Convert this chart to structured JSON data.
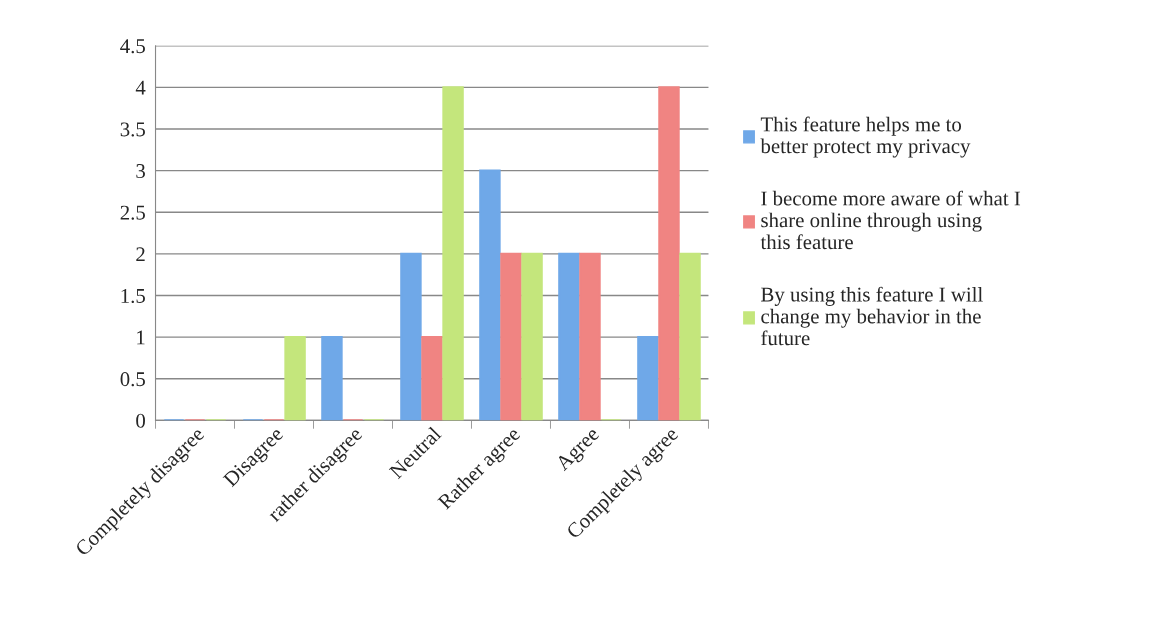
{
  "chart_data": {
    "type": "bar",
    "categories": [
      "Completely disagree",
      "Disagree",
      "rather disagree",
      "Neutral",
      "Rather agree",
      "Agree",
      "Completely agree"
    ],
    "series": [
      {
        "name": "This feature helps me to better protect my privacy",
        "color": "#6fa8e8",
        "values": [
          0,
          0,
          1,
          2,
          3,
          2,
          1
        ]
      },
      {
        "name": "I become more aware of what I share online through using this feature",
        "color": "#f08482",
        "values": [
          0,
          0,
          0,
          1,
          2,
          2,
          4
        ]
      },
      {
        "name": "By using this feature I will change my behavior in the future",
        "color": "#c4e67c",
        "values": [
          0,
          1,
          0,
          4,
          2,
          0,
          2
        ]
      }
    ],
    "ylim": [
      0,
      4.5
    ],
    "yticks": [
      0,
      0.5,
      1,
      1.5,
      2,
      2.5,
      3,
      3.5,
      4,
      4.5
    ],
    "grid": "y",
    "legend": "right"
  }
}
